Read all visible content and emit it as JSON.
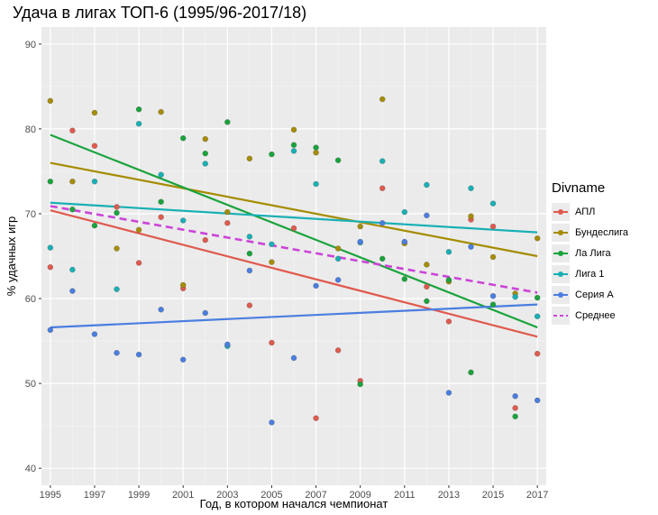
{
  "chart_data": {
    "type": "scatter",
    "title": "Удача в лигах ТОП-6 (1995/96-2017/18)",
    "xlabel": "Год, в котором начался чемпионат",
    "ylabel": "% удачных игр",
    "xlim": [
      1994.6,
      2017.4
    ],
    "ylim": [
      38,
      92
    ],
    "xticks": [
      1995,
      1997,
      1999,
      2001,
      2003,
      2005,
      2007,
      2009,
      2011,
      2013,
      2015,
      2017
    ],
    "yticks": [
      40,
      50,
      60,
      70,
      80,
      90
    ],
    "legend_title": "Divname",
    "legend_position": "right",
    "series": [
      {
        "name": "АПЛ",
        "color": "#e05a4e",
        "trend": [
          70.4,
          55.5
        ],
        "dashed": false,
        "points": [
          [
            1995,
            63.7
          ],
          [
            1996,
            79.8
          ],
          [
            1997,
            78.0
          ],
          [
            1998,
            70.8
          ],
          [
            1999,
            64.2
          ],
          [
            2000,
            69.6
          ],
          [
            2001,
            61.2
          ],
          [
            2002,
            66.9
          ],
          [
            2003,
            68.9
          ],
          [
            2004,
            59.2
          ],
          [
            2005,
            54.8
          ],
          [
            2006,
            68.3
          ],
          [
            2007,
            45.9
          ],
          [
            2008,
            53.9
          ],
          [
            2009,
            50.3
          ],
          [
            2010,
            73.0
          ],
          [
            2011,
            66.6
          ],
          [
            2012,
            61.4
          ],
          [
            2013,
            57.3
          ],
          [
            2014,
            69.3
          ],
          [
            2015,
            68.5
          ],
          [
            2016,
            47.1
          ],
          [
            2017,
            53.5
          ]
        ]
      },
      {
        "name": "Бундеслига",
        "color": "#a58c00",
        "trend": [
          76.0,
          65.0
        ],
        "dashed": false,
        "points": [
          [
            1995,
            83.3
          ],
          [
            1996,
            73.8
          ],
          [
            1997,
            81.9
          ],
          [
            1998,
            65.9
          ],
          [
            1999,
            68.1
          ],
          [
            2000,
            82.0
          ],
          [
            2001,
            61.6
          ],
          [
            2002,
            78.8
          ],
          [
            2003,
            70.2
          ],
          [
            2004,
            76.5
          ],
          [
            2005,
            64.3
          ],
          [
            2006,
            79.9
          ],
          [
            2007,
            77.2
          ],
          [
            2008,
            65.9
          ],
          [
            2009,
            68.5
          ],
          [
            2010,
            83.5
          ],
          [
            2011,
            66.5
          ],
          [
            2012,
            64.0
          ],
          [
            2013,
            62.0
          ],
          [
            2014,
            69.7
          ],
          [
            2015,
            64.9
          ],
          [
            2016,
            60.6
          ],
          [
            2017,
            67.1
          ]
        ]
      },
      {
        "name": "Ла Лига",
        "color": "#1aa33c",
        "trend": [
          79.3,
          56.6
        ],
        "dashed": false,
        "points": [
          [
            1995,
            73.8
          ],
          [
            1996,
            70.5
          ],
          [
            1997,
            68.6
          ],
          [
            1998,
            70.1
          ],
          [
            1999,
            82.3
          ],
          [
            2000,
            71.4
          ],
          [
            2001,
            78.9
          ],
          [
            2002,
            77.1
          ],
          [
            2003,
            80.8
          ],
          [
            2004,
            65.3
          ],
          [
            2005,
            77.0
          ],
          [
            2006,
            78.1
          ],
          [
            2007,
            77.8
          ],
          [
            2008,
            76.3
          ],
          [
            2009,
            49.9
          ],
          [
            2010,
            64.7
          ],
          [
            2011,
            62.3
          ],
          [
            2012,
            59.7
          ],
          [
            2013,
            62.2
          ],
          [
            2014,
            51.3
          ],
          [
            2015,
            59.3
          ],
          [
            2016,
            46.1
          ],
          [
            2017,
            60.1
          ]
        ]
      },
      {
        "name": "Лига 1",
        "color": "#18b0b5",
        "trend": [
          71.3,
          67.8
        ],
        "dashed": false,
        "points": [
          [
            1995,
            66.0
          ],
          [
            1996,
            63.4
          ],
          [
            1997,
            73.8
          ],
          [
            1998,
            61.1
          ],
          [
            1999,
            80.6
          ],
          [
            2000,
            74.6
          ],
          [
            2001,
            69.2
          ],
          [
            2002,
            75.9
          ],
          [
            2003,
            54.4
          ],
          [
            2004,
            67.3
          ],
          [
            2005,
            66.4
          ],
          [
            2006,
            77.4
          ],
          [
            2007,
            73.5
          ],
          [
            2008,
            64.7
          ],
          [
            2009,
            66.6
          ],
          [
            2010,
            76.2
          ],
          [
            2011,
            70.2
          ],
          [
            2012,
            73.4
          ],
          [
            2013,
            65.5
          ],
          [
            2014,
            73.0
          ],
          [
            2015,
            71.2
          ],
          [
            2016,
            60.2
          ],
          [
            2017,
            57.9
          ]
        ]
      },
      {
        "name": "Серия А",
        "color": "#4a7ee0",
        "trend": [
          56.6,
          59.3
        ],
        "dashed": false,
        "points": [
          [
            1995,
            56.3
          ],
          [
            1996,
            60.9
          ],
          [
            1997,
            55.8
          ],
          [
            1998,
            53.6
          ],
          [
            1999,
            53.4
          ],
          [
            2000,
            58.7
          ],
          [
            2001,
            52.8
          ],
          [
            2002,
            58.3
          ],
          [
            2003,
            54.6
          ],
          [
            2004,
            63.3
          ],
          [
            2005,
            45.4
          ],
          [
            2006,
            53.0
          ],
          [
            2007,
            61.5
          ],
          [
            2008,
            62.2
          ],
          [
            2009,
            66.7
          ],
          [
            2010,
            68.9
          ],
          [
            2011,
            66.7
          ],
          [
            2012,
            69.8
          ],
          [
            2013,
            48.9
          ],
          [
            2014,
            66.1
          ],
          [
            2015,
            60.3
          ],
          [
            2016,
            48.5
          ],
          [
            2017,
            48.0
          ]
        ]
      },
      {
        "name": "Среднее",
        "color": "#cc44d8",
        "trend": [
          70.9,
          60.7
        ],
        "dashed": true,
        "points": []
      }
    ]
  }
}
